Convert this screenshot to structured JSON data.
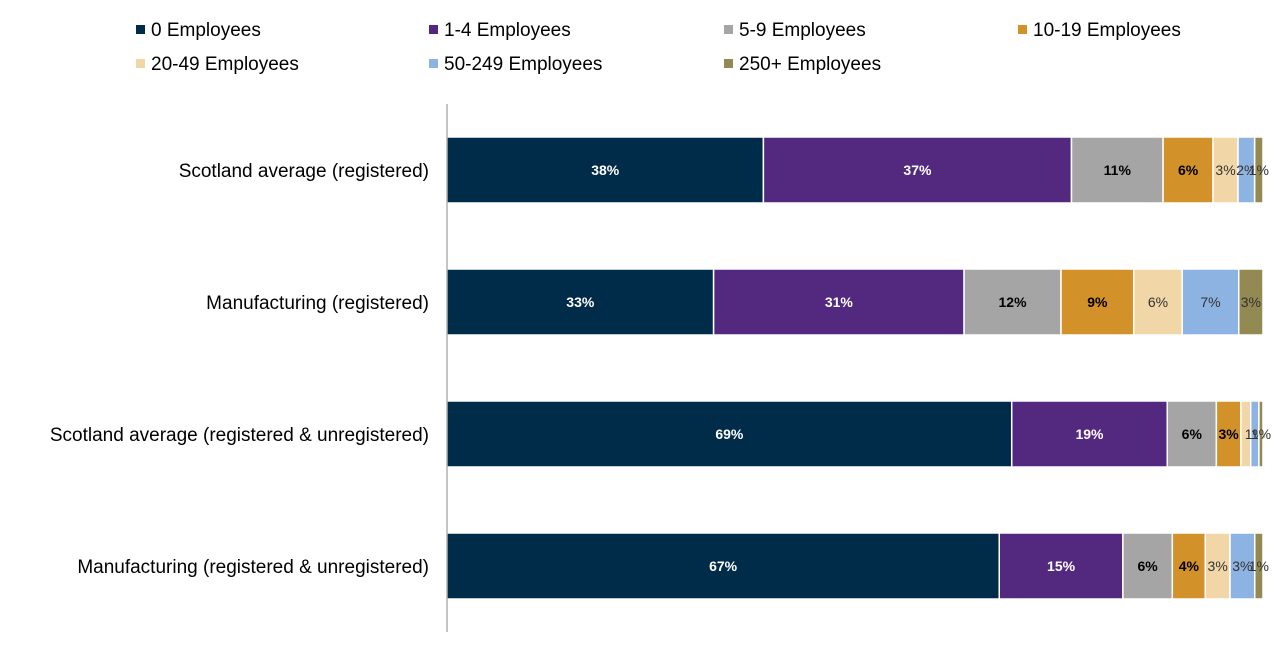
{
  "chart_data": {
    "type": "bar",
    "orientation": "horizontal",
    "stacked": true,
    "percent_stacked": true,
    "title": "",
    "xlabel": "",
    "ylabel": "",
    "xlim": [
      0,
      100
    ],
    "legend_position": "top",
    "gridlines": false,
    "categories": [
      "Scotland average (registered)",
      "Manufacturing (registered)",
      "Scotland average (registered & unregistered)",
      "Manufacturing (registered & unregistered)"
    ],
    "series": [
      {
        "name": "0 Employees",
        "color": "#002b49",
        "label_color": "#ffffff",
        "bold": true,
        "values": [
          38,
          33,
          69,
          67
        ],
        "labels": [
          "38%",
          "33%",
          "69%",
          "67%"
        ]
      },
      {
        "name": "1-4 Employees",
        "color": "#53297f",
        "label_color": "#ffffff",
        "bold": true,
        "values": [
          37,
          31,
          19,
          15
        ],
        "labels": [
          "37%",
          "31%",
          "19%",
          "15%"
        ]
      },
      {
        "name": "5-9 Employees",
        "color": "#a5a5a5",
        "label_color": "#000000",
        "bold": true,
        "values": [
          11,
          12,
          6,
          6
        ],
        "labels": [
          "11%",
          "12%",
          "6%",
          "6%"
        ]
      },
      {
        "name": "10-19 Employees",
        "color": "#d3912a",
        "label_color": "#000000",
        "bold": true,
        "values": [
          6,
          9,
          3,
          4
        ],
        "labels": [
          "6%",
          "9%",
          "3%",
          "4%"
        ]
      },
      {
        "name": "20-49 Employees",
        "color": "#f1d6a8",
        "label_color": "#333333",
        "bold": false,
        "values": [
          3,
          6,
          1.2,
          3
        ],
        "labels": [
          "3%",
          "6%",
          "",
          "3%"
        ]
      },
      {
        "name": "50-249 Employees",
        "color": "#8db3e2",
        "label_color": "#333333",
        "bold": false,
        "values": [
          2,
          7,
          1,
          3
        ],
        "labels": [
          "2%",
          "7%",
          "1%",
          "3%"
        ]
      },
      {
        "name": "250+ Employees",
        "color": "#938953",
        "label_color": "#333333",
        "bold": false,
        "values": [
          1,
          3,
          0.5,
          1
        ],
        "labels": [
          "1%",
          "3%",
          "1%",
          "1%"
        ]
      }
    ]
  }
}
